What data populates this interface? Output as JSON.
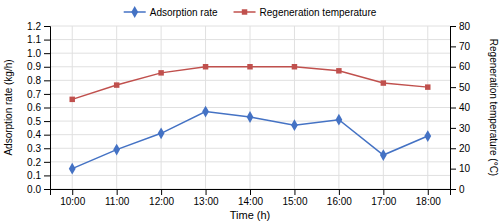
{
  "chart_data": {
    "type": "line",
    "xlabel": "Time (h)",
    "ylabel": "Adsorption rate (kg/h)",
    "y2label": "Regeneration temperature (°C)",
    "x": [
      10,
      11,
      12,
      13,
      14,
      15,
      16,
      17,
      18
    ],
    "xlim": [
      9.5,
      18.5
    ],
    "xticks": [
      {
        "value": 10,
        "label": "10:00"
      },
      {
        "value": 11,
        "label": "11:00"
      },
      {
        "value": 12,
        "label": "12:00"
      },
      {
        "value": 13,
        "label": "13:00"
      },
      {
        "value": 14,
        "label": "14:00"
      },
      {
        "value": 15,
        "label": "15:00"
      },
      {
        "value": 16,
        "label": "16:00"
      },
      {
        "value": 17,
        "label": "17:00"
      },
      {
        "value": 18,
        "label": "18:00"
      }
    ],
    "ylim": [
      0,
      1.2
    ],
    "yticks": [
      {
        "value": 0,
        "label": "0.0"
      },
      0.1,
      0.2,
      0.3,
      0.4,
      0.5,
      0.6,
      0.7,
      0.8,
      0.9,
      {
        "value": 1,
        "label": "1.0"
      },
      1.1,
      1.2
    ],
    "y2lim": [
      0,
      80
    ],
    "y2ticks": [
      0,
      10,
      20,
      30,
      40,
      50,
      60,
      70,
      80
    ],
    "grid": true,
    "legend": "top",
    "series": [
      {
        "name": "Adsorption rate",
        "color": "#4472c4",
        "marker": "diamond",
        "values": [
          0.15,
          0.29,
          0.41,
          0.57,
          0.53,
          0.47,
          0.51,
          0.25,
          0.39
        ]
      },
      {
        "name": "Regeneration temperature",
        "color": "#c0504d",
        "marker": "square",
        "axis": "y2",
        "values": [
          44,
          51,
          57,
          60,
          60,
          60,
          58,
          52,
          50
        ]
      }
    ]
  }
}
